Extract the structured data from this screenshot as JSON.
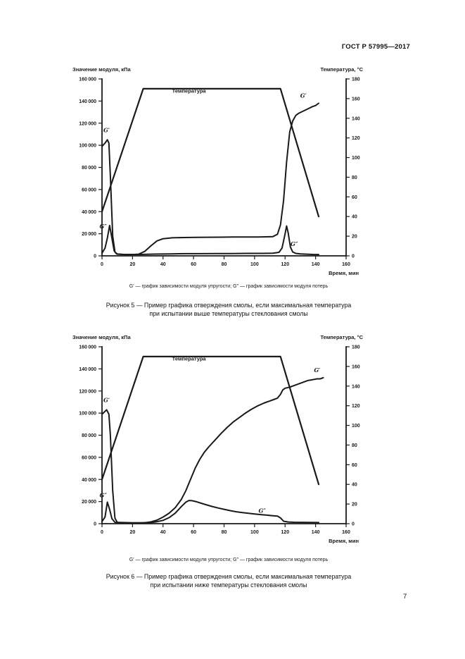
{
  "page": {
    "header": "ГОСТ Р 57995—2017",
    "page_number": "7",
    "line_color": "#1a1a1a"
  },
  "figures": [
    {
      "note": "G′ — график зависимости модуля упругости; G″ — график зависимости модуля потерь",
      "caption_line1": "Рисунок 5 — Пример графика отверждения смолы, если максимальная температура",
      "caption_line2": "при испытании выше температуры стеклования смолы"
    },
    {
      "note": "G′ — график зависимости модуля упругости; G″ — график зависимости модуля потерь",
      "caption_line1": "Рисунок 6 — Пример графика отверждения смолы, если максимальная температура",
      "caption_line2": "при испытании ниже температуры стеклования смолы"
    }
  ],
  "chart_data": [
    {
      "type": "line",
      "title": "Рисунок 5",
      "ylabel_left": "Значение модуля, кПа",
      "ylabel_right": "Температура, °С",
      "xlabel": "Время, мин",
      "xlim": [
        0,
        160
      ],
      "xticks": [
        0,
        20,
        40,
        60,
        80,
        100,
        120,
        140,
        160
      ],
      "ylim_left": [
        0,
        160000
      ],
      "yticks_left": [
        0,
        20000,
        40000,
        60000,
        80000,
        100000,
        120000,
        140000,
        160000
      ],
      "ylim_right": [
        0,
        180
      ],
      "yticks_right": [
        0,
        20,
        40,
        60,
        80,
        100,
        120,
        140,
        160,
        180
      ],
      "grid": false,
      "series": [
        {
          "id": "temperature",
          "name": "Температура",
          "axis": "right",
          "width": 2.2,
          "points": [
            [
              0,
              45
            ],
            [
              27,
              170
            ],
            [
              117,
              170
            ],
            [
              142,
              40
            ]
          ]
        },
        {
          "id": "g-prime",
          "name": "G′",
          "axis": "left",
          "width": 2,
          "points": [
            [
              0,
              99000
            ],
            [
              2,
              102000
            ],
            [
              3.5,
              105000
            ],
            [
              4.5,
              102000
            ],
            [
              5.5,
              72000
            ],
            [
              7,
              18000
            ],
            [
              8.5,
              3500
            ],
            [
              10,
              1500
            ],
            [
              15,
              1200
            ],
            [
              20,
              1200
            ],
            [
              24,
              1500
            ],
            [
              28,
              4000
            ],
            [
              32,
              9000
            ],
            [
              36,
              13500
            ],
            [
              40,
              15500
            ],
            [
              46,
              16300
            ],
            [
              54,
              16600
            ],
            [
              62,
              16700
            ],
            [
              70,
              16800
            ],
            [
              78,
              16900
            ],
            [
              86,
              17000
            ],
            [
              94,
              17000
            ],
            [
              102,
              17100
            ],
            [
              108,
              17200
            ],
            [
              112,
              17400
            ],
            [
              115,
              19500
            ],
            [
              117,
              28000
            ],
            [
              119,
              50000
            ],
            [
              121,
              85000
            ],
            [
              123,
              112000
            ],
            [
              125,
              122000
            ],
            [
              127,
              127000
            ],
            [
              129,
              129000
            ],
            [
              132,
              131000
            ],
            [
              135,
              133000
            ],
            [
              138,
              135000
            ],
            [
              140,
              136000
            ],
            [
              142,
              138000
            ]
          ]
        },
        {
          "id": "g-double-prime",
          "name": "G″",
          "axis": "left",
          "width": 2,
          "points": [
            [
              0,
              2500
            ],
            [
              2,
              7000
            ],
            [
              3.5,
              16000
            ],
            [
              5,
              27500
            ],
            [
              6.5,
              16000
            ],
            [
              8,
              4500
            ],
            [
              9.5,
              1800
            ],
            [
              15,
              1200
            ],
            [
              25,
              1300
            ],
            [
              35,
              1600
            ],
            [
              45,
              1800
            ],
            [
              55,
              2000
            ],
            [
              65,
              2000
            ],
            [
              75,
              2100
            ],
            [
              85,
              2100
            ],
            [
              95,
              2200
            ],
            [
              105,
              2200
            ],
            [
              112,
              2400
            ],
            [
              116,
              3200
            ],
            [
              118,
              7000
            ],
            [
              120,
              20000
            ],
            [
              121,
              27000
            ],
            [
              122,
              21000
            ],
            [
              123.5,
              8000
            ],
            [
              125,
              3500
            ],
            [
              127,
              2200
            ],
            [
              130,
              1800
            ],
            [
              134,
              1500
            ],
            [
              138,
              1300
            ],
            [
              142,
              1200
            ]
          ]
        }
      ],
      "annotations": [
        {
          "id": "temperature-label",
          "text": "Температура",
          "x": 57,
          "y": 166,
          "axis": "right",
          "kind": "temp"
        },
        {
          "id": "g-prime-early-label",
          "text": "G′",
          "x": 3,
          "y": 112000,
          "axis": "left",
          "kind": "curve"
        },
        {
          "id": "g-double-prime-early-label",
          "text": "G″",
          "x": 0.8,
          "y": 25000,
          "axis": "left",
          "kind": "curve"
        },
        {
          "id": "g-prime-late-label",
          "text": "G′",
          "x": 132,
          "y": 143000,
          "axis": "left",
          "kind": "curve"
        },
        {
          "id": "g-double-prime-late-label",
          "text": "G″",
          "x": 126,
          "y": 9000,
          "axis": "left",
          "kind": "curve"
        }
      ]
    },
    {
      "type": "line",
      "title": "Рисунок 6",
      "ylabel_left": "Значение модуля, кПа",
      "ylabel_right": "Температура, °С",
      "xlabel": "Время, мин",
      "xlim": [
        0,
        160
      ],
      "xticks": [
        0,
        20,
        40,
        60,
        80,
        100,
        120,
        140,
        160
      ],
      "ylim_left": [
        0,
        160000
      ],
      "yticks_left": [
        0,
        20000,
        40000,
        60000,
        80000,
        100000,
        120000,
        140000,
        160000
      ],
      "ylim_right": [
        0,
        180
      ],
      "yticks_right": [
        0,
        20,
        40,
        60,
        80,
        100,
        120,
        140,
        160,
        180
      ],
      "grid": false,
      "series": [
        {
          "id": "temperature",
          "name": "Температура",
          "axis": "right",
          "width": 2.2,
          "points": [
            [
              0,
              45
            ],
            [
              27,
              170
            ],
            [
              117,
              170
            ],
            [
              142,
              40
            ]
          ]
        },
        {
          "id": "g-prime",
          "name": "G′",
          "axis": "left",
          "width": 2,
          "points": [
            [
              0,
              99000
            ],
            [
              1.5,
              101000
            ],
            [
              3,
              103000
            ],
            [
              4.5,
              99000
            ],
            [
              5.5,
              80000
            ],
            [
              7,
              30000
            ],
            [
              8.5,
              5000
            ],
            [
              10,
              1200
            ],
            [
              20,
              800
            ],
            [
              28,
              900
            ],
            [
              32,
              1600
            ],
            [
              36,
              3200
            ],
            [
              40,
              6000
            ],
            [
              44,
              9500
            ],
            [
              48,
              14500
            ],
            [
              52,
              22000
            ],
            [
              55,
              30000
            ],
            [
              58,
              40000
            ],
            [
              61,
              50000
            ],
            [
              64,
              58000
            ],
            [
              67,
              64500
            ],
            [
              70,
              69500
            ],
            [
              74,
              75500
            ],
            [
              78,
              81500
            ],
            [
              82,
              87000
            ],
            [
              86,
              92000
            ],
            [
              90,
              96000
            ],
            [
              94,
              100000
            ],
            [
              98,
              103500
            ],
            [
              102,
              106500
            ],
            [
              106,
              109000
            ],
            [
              110,
              111000
            ],
            [
              113,
              112500
            ],
            [
              115,
              113500
            ],
            [
              117,
              117000
            ],
            [
              118.5,
              121000
            ],
            [
              120,
              122500
            ],
            [
              123,
              123500
            ],
            [
              126,
              125000
            ],
            [
              129,
              126500
            ],
            [
              132,
              128000
            ],
            [
              135,
              129500
            ],
            [
              137,
              130000
            ],
            [
              139,
              130500
            ],
            [
              141,
              131000
            ],
            [
              143,
              131000
            ],
            [
              145,
              132000
            ]
          ]
        },
        {
          "id": "g-double-prime",
          "name": "G″",
          "axis": "left",
          "width": 2,
          "points": [
            [
              0,
              2000
            ],
            [
              2,
              6000
            ],
            [
              3.5,
              19500
            ],
            [
              5,
              13000
            ],
            [
              6.5,
              4500
            ],
            [
              8.5,
              1200
            ],
            [
              15,
              700
            ],
            [
              25,
              700
            ],
            [
              32,
              1000
            ],
            [
              36,
              1800
            ],
            [
              40,
              3000
            ],
            [
              44,
              5500
            ],
            [
              48,
              9500
            ],
            [
              52,
              15500
            ],
            [
              55,
              19500
            ],
            [
              57,
              21000
            ],
            [
              59,
              20800
            ],
            [
              62,
              19800
            ],
            [
              65,
              18500
            ],
            [
              68,
              17200
            ],
            [
              72,
              15600
            ],
            [
              76,
              14200
            ],
            [
              80,
              13000
            ],
            [
              84,
              11800
            ],
            [
              88,
              10800
            ],
            [
              92,
              10000
            ],
            [
              96,
              9400
            ],
            [
              100,
              8800
            ],
            [
              104,
              8200
            ],
            [
              108,
              7700
            ],
            [
              112,
              7200
            ],
            [
              115,
              6800
            ],
            [
              117,
              5200
            ],
            [
              119,
              2200
            ],
            [
              122,
              1500
            ],
            [
              126,
              1300
            ],
            [
              131,
              1200
            ],
            [
              136,
              1100
            ],
            [
              142,
              1000
            ]
          ]
        }
      ],
      "annotations": [
        {
          "id": "temperature-label",
          "text": "Температура",
          "x": 57,
          "y": 166,
          "axis": "right",
          "kind": "temp"
        },
        {
          "id": "g-prime-early-label",
          "text": "G′",
          "x": 3,
          "y": 110000,
          "axis": "left",
          "kind": "curve"
        },
        {
          "id": "g-double-prime-early-label",
          "text": "G″",
          "x": 0.8,
          "y": 24000,
          "axis": "left",
          "kind": "curve"
        },
        {
          "id": "g-prime-late-label",
          "text": "G′",
          "x": 141,
          "y": 137000,
          "axis": "left",
          "kind": "curve"
        },
        {
          "id": "g-double-prime-late-label",
          "text": "G″",
          "x": 105,
          "y": 10000,
          "axis": "left",
          "kind": "curve"
        }
      ]
    }
  ]
}
